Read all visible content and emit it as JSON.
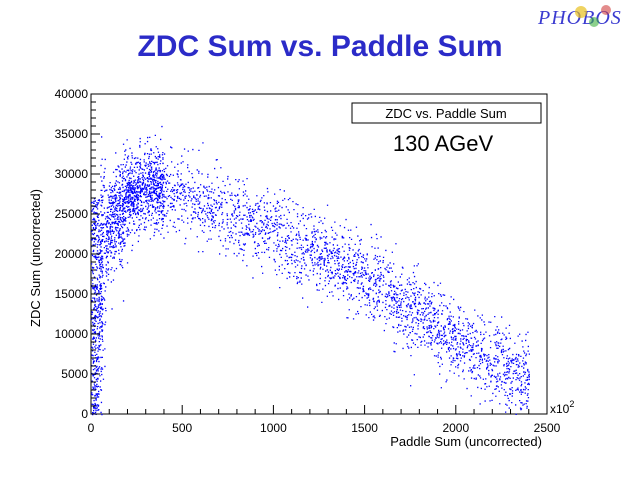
{
  "header": {
    "title": "ZDC Sum vs. Paddle Sum",
    "logo_text": "PHOBOS"
  },
  "colors": {
    "title": "#2b2bc8",
    "points": "#0000ff",
    "frame": "#000000"
  },
  "chart_data": {
    "type": "scatter",
    "legend_title": "ZDC vs. Paddle Sum",
    "annotation": "130 AGeV",
    "xlabel": "Paddle Sum (uncorrected)",
    "ylabel": "ZDC Sum (uncorrected)",
    "x_exponent_label": "x10",
    "x_exponent_power": "2",
    "xlim": [
      0,
      2500
    ],
    "ylim": [
      0,
      40000
    ],
    "x_ticks": [
      "0",
      "500",
      "1000",
      "1500",
      "2000",
      "2500"
    ],
    "y_ticks": [
      "0",
      "5000",
      "10000",
      "15000",
      "20000",
      "25000",
      "30000",
      "35000",
      "40000"
    ],
    "density_ridge": {
      "x": [
        0,
        50,
        100,
        200,
        300,
        400,
        500,
        700,
        900,
        1100,
        1300,
        1500,
        1700,
        1900,
        2100,
        2300,
        2400
      ],
      "y": [
        8000,
        17000,
        24000,
        27000,
        28500,
        28000,
        27500,
        25500,
        23500,
        21500,
        19500,
        17000,
        14000,
        11000,
        8000,
        5500,
        4500
      ]
    }
  }
}
